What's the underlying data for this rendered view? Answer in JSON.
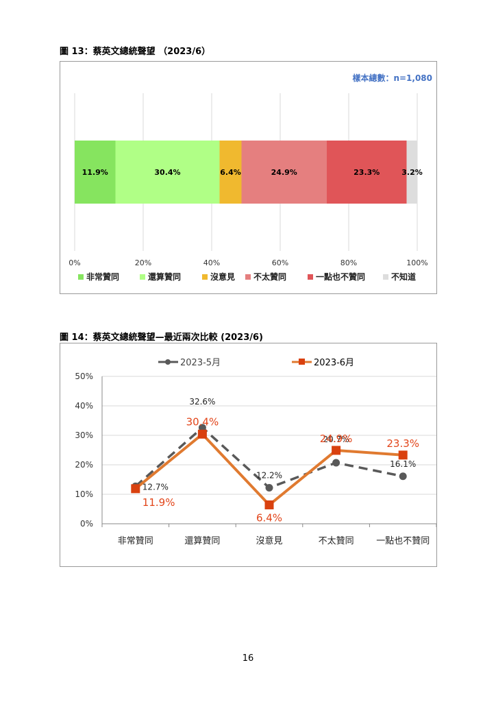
{
  "page": {
    "number": "16"
  },
  "figure13": {
    "title": "圖 13：蔡英文總統聲望 （2023/6）",
    "sample": "樣本總數：n=1,080",
    "colors": [
      "#86e45f",
      "#b0ff86",
      "#f0b92f",
      "#e57f7f",
      "#e05558",
      "#dddddd"
    ],
    "chart_data": {
      "type": "bar",
      "orientation": "horizontal-stacked-100",
      "categories": [
        "非常贊同",
        "還算贊同",
        "沒意見",
        "不太贊同",
        "一點也不贊同",
        "不知道"
      ],
      "values": [
        11.9,
        30.4,
        6.4,
        24.9,
        23.3,
        3.2
      ],
      "value_labels": [
        "11.9%",
        "30.4%",
        "6.4%",
        "24.9%",
        "23.3%",
        "3.2%"
      ],
      "xlim": [
        0,
        100
      ],
      "x_ticks": [
        "0%",
        "20%",
        "40%",
        "60%",
        "80%",
        "100%"
      ],
      "grid": true,
      "legend_position": "bottom"
    }
  },
  "figure14": {
    "title": "圖 14：蔡英文總統聲望—最近兩次比較 (2023/6)",
    "colors": {
      "may": "#595959",
      "june": "#e07a30",
      "june_label": "#e2451a"
    },
    "chart_data": {
      "type": "line",
      "categories": [
        "非常贊同",
        "還算贊同",
        "沒意見",
        "不太贊同",
        "一點也不贊同"
      ],
      "ylim": [
        0,
        50
      ],
      "y_ticks": [
        "0%",
        "10%",
        "20%",
        "30%",
        "40%",
        "50%"
      ],
      "grid": true,
      "legend_position": "top",
      "series": [
        {
          "name": "2023-5月",
          "values": [
            12.7,
            32.6,
            12.2,
            20.7,
            16.1
          ],
          "labels": [
            "12.7%",
            "32.6%",
            "12.2%",
            "20.7%",
            "16.1%"
          ],
          "style": "dashed",
          "marker": "circle"
        },
        {
          "name": "2023-6月",
          "values": [
            11.9,
            30.4,
            6.4,
            24.9,
            23.3
          ],
          "labels": [
            "11.9%",
            "30.4%",
            "6.4%",
            "24.9%",
            "23.3%"
          ],
          "style": "solid",
          "marker": "square"
        }
      ]
    }
  }
}
